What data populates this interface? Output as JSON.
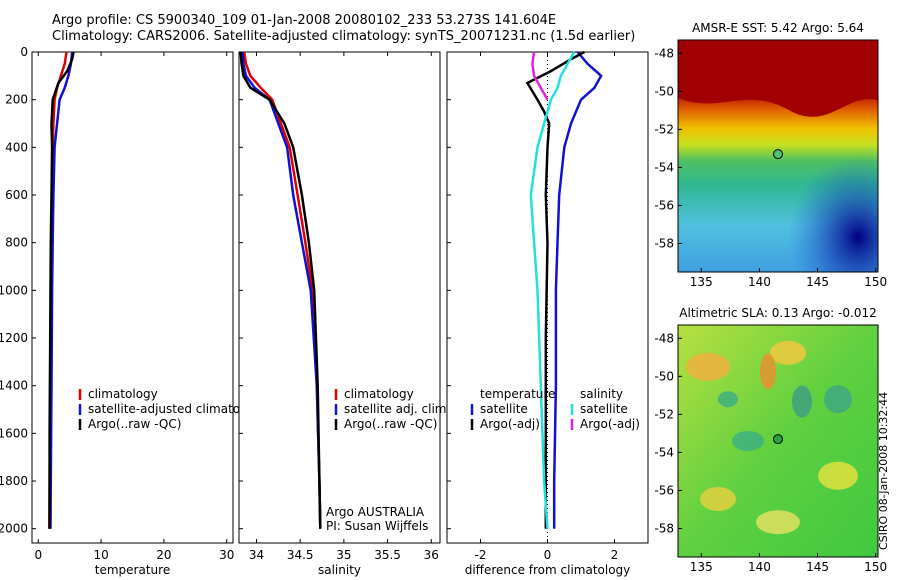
{
  "header": {
    "line1": "Argo profile: CS 5900340_109 01-Jan-2008 20080102_233 53.273S 141.604E",
    "line2": "Climatology: CARS2006. Satellite-adjusted climatology: synTS_20071231.nc (1.5d earlier)"
  },
  "side_label": "CSIRO 08-Jan-2008 10:32:44",
  "colors": {
    "climatology": "#e00000",
    "satellite": "#1010d0",
    "argo": "#000000",
    "sal_sat": "#20e0e0",
    "sal_argo": "#e020e0"
  },
  "chart_data": [
    {
      "type": "line",
      "xlabel": "temperature",
      "xlim": [
        -1,
        31
      ],
      "ylim": [
        2060,
        0
      ],
      "xticks": [
        "0",
        "10",
        "20",
        "30"
      ],
      "yticks": [
        "0",
        "200",
        "400",
        "600",
        "800",
        "1000",
        "1200",
        "1400",
        "1600",
        "1800",
        "2000"
      ],
      "legend": {
        "entries": [
          "climatology",
          "satellite-adjusted climatology",
          "Argo(..raw -QC)"
        ],
        "placement": "lower-middle"
      },
      "series": [
        {
          "name": "climatology",
          "color": "#e00000",
          "x": [
            4.5,
            4.2,
            3.6,
            3.0,
            2.6,
            2.4,
            2.3,
            2.2,
            2.1,
            2.0,
            1.9,
            1.8,
            1.75
          ],
          "y": [
            0,
            50,
            100,
            150,
            200,
            300,
            400,
            600,
            800,
            1000,
            1400,
            1800,
            2000
          ]
        },
        {
          "name": "satellite-adjusted climatology",
          "color": "#1010d0",
          "x": [
            5.4,
            5.2,
            4.8,
            4.2,
            3.4,
            3.0,
            2.6,
            2.4,
            2.3,
            2.2,
            2.1,
            2.0,
            1.95
          ],
          "y": [
            0,
            50,
            100,
            150,
            200,
            300,
            400,
            600,
            800,
            1000,
            1400,
            1800,
            2000
          ]
        },
        {
          "name": "Argo(..raw -QC)",
          "color": "#000000",
          "x": [
            5.6,
            5.4,
            4.6,
            3.2,
            2.3,
            2.2,
            2.1,
            2.2,
            2.1,
            2.0,
            1.9,
            1.8,
            1.8
          ],
          "y": [
            0,
            30,
            80,
            130,
            200,
            250,
            300,
            400,
            600,
            800,
            1200,
            1600,
            2000
          ]
        }
      ]
    },
    {
      "type": "line",
      "xlabel": "salinity",
      "xlim": [
        33.8,
        36.1
      ],
      "ylim": [
        2060,
        0
      ],
      "xticks": [
        "34",
        "34.5",
        "35",
        "35.5",
        "36"
      ],
      "legend": {
        "entries": [
          "climatology",
          "satellite adj. clim.",
          "Argo(..raw -QC)"
        ],
        "placement": "lower-right"
      },
      "annotations": [
        "Argo AUSTRALIA",
        "PI: Susan Wijffels"
      ],
      "series": [
        {
          "name": "climatology",
          "color": "#e00000",
          "x": [
            33.86,
            33.88,
            33.93,
            34.05,
            34.18,
            34.28,
            34.38,
            34.47,
            34.56,
            34.64,
            34.69,
            34.72,
            34.73
          ],
          "y": [
            0,
            50,
            100,
            150,
            200,
            300,
            400,
            600,
            800,
            1000,
            1400,
            1800,
            2000
          ]
        },
        {
          "name": "satellite adj. clim.",
          "color": "#1010d0",
          "x": [
            33.84,
            33.85,
            33.88,
            33.98,
            34.15,
            34.25,
            34.35,
            34.42,
            34.52,
            34.62,
            34.69,
            34.72,
            34.73
          ],
          "y": [
            0,
            50,
            100,
            150,
            200,
            300,
            400,
            600,
            800,
            1000,
            1400,
            1800,
            2000
          ]
        },
        {
          "name": "Argo(..raw -QC)",
          "color": "#000000",
          "x": [
            33.82,
            33.83,
            33.85,
            33.93,
            34.15,
            34.32,
            34.42,
            34.52,
            34.6,
            34.66,
            34.7,
            34.72,
            34.73
          ],
          "y": [
            0,
            50,
            100,
            150,
            200,
            300,
            400,
            600,
            800,
            1000,
            1400,
            1800,
            2000
          ]
        }
      ]
    },
    {
      "type": "line",
      "xlabel": "difference from climatology",
      "xlim": [
        -3.0,
        3.0
      ],
      "ylim": [
        2060,
        0
      ],
      "xticks": [
        "-2",
        "0",
        "2"
      ],
      "legend": {
        "entries": [
          "temperature",
          "satellite",
          "Argo(-adj)",
          "salinity",
          "satellite",
          "Argo(-adj)"
        ],
        "placement": "lower-middle"
      },
      "series": [
        {
          "name": "temperature satellite",
          "color": "#1010d0",
          "x": [
            0.9,
            1.2,
            1.6,
            1.4,
            1.0,
            0.7,
            0.5,
            0.35,
            0.3,
            0.25,
            0.25,
            0.2,
            0.2
          ],
          "y": [
            0,
            50,
            100,
            150,
            200,
            300,
            400,
            600,
            800,
            1000,
            1400,
            1800,
            2000
          ]
        },
        {
          "name": "temperature Argo(-adj)",
          "color": "#000000",
          "x": [
            1.1,
            0.7,
            0.1,
            -0.6,
            -0.3,
            -0.1,
            0.05,
            0,
            -0.05,
            0,
            -0.05,
            -0.05,
            -0.05
          ],
          "y": [
            0,
            30,
            80,
            130,
            200,
            250,
            300,
            400,
            600,
            800,
            1200,
            1600,
            2000
          ]
        },
        {
          "name": "salinity satellite",
          "color": "#20e0e0",
          "x": [
            0.8,
            0.6,
            0.4,
            0.3,
            0.1,
            -0.1,
            -0.3,
            -0.5,
            -0.4,
            -0.3,
            -0.2,
            -0.1,
            0
          ],
          "y": [
            0,
            50,
            100,
            150,
            200,
            300,
            400,
            600,
            800,
            1000,
            1400,
            1800,
            2000
          ]
        },
        {
          "name": "salinity Argo(-adj)",
          "color": "#e020e0",
          "x": [
            -0.4,
            -0.45,
            -0.4,
            -0.2,
            0
          ],
          "y": [
            0,
            50,
            100,
            150,
            200
          ]
        }
      ]
    },
    {
      "type": "heatmap",
      "title": "AMSR-E SST: 5.42  Argo: 5.64",
      "xlim": [
        133,
        150.2
      ],
      "ylim": [
        -59.5,
        -47.3
      ],
      "xticks": [
        "135",
        "140",
        "145",
        "150"
      ],
      "yticks": [
        "-48",
        "-50",
        "-52",
        "-54",
        "-56",
        "-58"
      ],
      "marker": {
        "lon": 141.6,
        "lat": -53.3
      }
    },
    {
      "type": "heatmap",
      "title": "Altimetric SLA: 0.13  Argo: -0.012",
      "xlim": [
        133,
        150.2
      ],
      "ylim": [
        -59.5,
        -47.3
      ],
      "xticks": [
        "135",
        "140",
        "145",
        "150"
      ],
      "yticks": [
        "-48",
        "-50",
        "-52",
        "-54",
        "-56",
        "-58"
      ],
      "marker": {
        "lon": 141.6,
        "lat": -53.3
      }
    }
  ]
}
